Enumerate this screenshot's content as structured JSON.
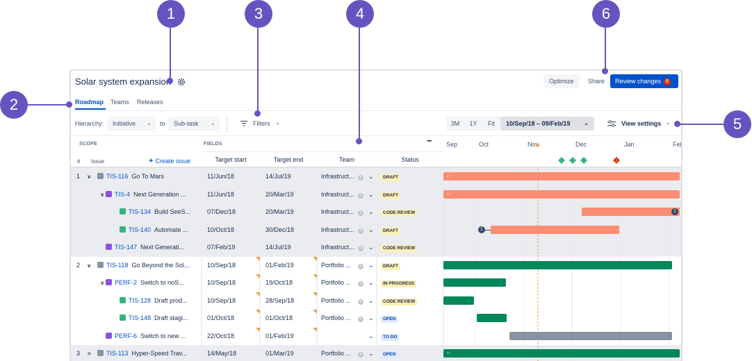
{
  "header": {
    "title": "Solar system expansion",
    "optimize": "Optimize",
    "share": "Share",
    "review": "Review changes",
    "review_count": "6"
  },
  "tabs": [
    {
      "label": "Roadmap",
      "active": true
    },
    {
      "label": "Teams",
      "active": false
    },
    {
      "label": "Releases",
      "active": false
    }
  ],
  "toolbar": {
    "hierarchy_label": "Hierarchy:",
    "hierarchy_from": "Initiative",
    "to_label": "to",
    "hierarchy_to": "Sub-task",
    "filters": "Filters",
    "zoom": [
      "3M",
      "1Y",
      "Fit"
    ],
    "range": "10/Sep/18 – 09/Feb/19",
    "view_settings": "View settings"
  },
  "columns": {
    "scope": "SCOPE",
    "fields": "FIELDS",
    "num": "#",
    "issue": "Issue",
    "create": "Create issue",
    "target_start": "Target start",
    "target_end": "Target end",
    "team": "Team",
    "status": "Status",
    "more": "•••"
  },
  "timeline": {
    "months": [
      "Sep",
      "Oct",
      "Nov",
      "Dec",
      "Jan",
      "Feb"
    ]
  },
  "rows": [
    {
      "num": "1",
      "expand": "v",
      "key": "TIS-116",
      "summary": "Go To Mars",
      "start": "11/Jun/18",
      "end": "14/Jul/19",
      "team": "Infrastruct...",
      "status": "DRAFT",
      "indent": 0,
      "type": "initiative",
      "shade": true,
      "tri_start": false,
      "tri_end": false,
      "bar": {
        "start": 0,
        "end": 1,
        "color": "#fa8d72",
        "arrow": "←"
      }
    },
    {
      "num": "",
      "expand": "v",
      "key": "TIS-4",
      "summary": "Next Generation ...",
      "start": "11/Jun/18",
      "end": "20/Mar/19",
      "team": "Infrastruct...",
      "status": "DRAFT",
      "indent": 1,
      "type": "epic",
      "shade": true,
      "tri_start": false,
      "tri_end": false,
      "bar": {
        "start": 0,
        "end": 1,
        "color": "#fa8d72",
        "arrow": "←"
      }
    },
    {
      "num": "",
      "expand": "",
      "key": "TIS-134",
      "summary": "Build SeeS...",
      "start": "07/Dec/18",
      "end": "20/Mar/19",
      "team": "Infrastruct...",
      "status": "CODE REVIEW",
      "indent": 2,
      "type": "story",
      "shade": true,
      "tri_start": false,
      "tri_end": false,
      "bar": {
        "start": 0.585,
        "end": 1,
        "color": "#fa8d72",
        "badge": "1",
        "badge_side": "right"
      }
    },
    {
      "num": "",
      "expand": "",
      "key": "TIS-140",
      "summary": "Automate ...",
      "start": "10/Oct/18",
      "end": "30/Dec/18",
      "team": "Infrastruct...",
      "status": "DRAFT",
      "indent": 2,
      "type": "story",
      "shade": true,
      "tri_start": false,
      "tri_end": false,
      "bar": {
        "start": 0.2,
        "end": 0.745,
        "color": "#fa8d72",
        "badge": "1",
        "badge_side": "left"
      }
    },
    {
      "num": "",
      "expand": "",
      "key": "TIS-147",
      "summary": "Next Generati...",
      "start": "07/Feb/19",
      "end": "14/Jul/19",
      "team": "Infrastruct...",
      "status": "CODE REVIEW",
      "indent": 1,
      "type": "epic",
      "shade": true,
      "tri_start": false,
      "tri_end": false,
      "bar": null
    },
    {
      "num": "2",
      "expand": "v",
      "key": "TIS-118",
      "summary": "Go Beyond the Sol...",
      "start": "10/Sep/18",
      "end": "01/Feb/19",
      "team": "Portfolio ...",
      "status": "DRAFT",
      "indent": 0,
      "type": "initiative",
      "shade": false,
      "tri_start": true,
      "tri_end": true,
      "bar": {
        "start": 0,
        "end": 0.967,
        "color": "#00875a"
      }
    },
    {
      "num": "",
      "expand": "v",
      "key": "PERF-2",
      "summary": "Switch to noS...",
      "start": "10/Sep/18",
      "end": "19/Oct/18",
      "team": "Portfolio ...",
      "status": "IN PROGRESS",
      "indent": 1,
      "type": "epic",
      "shade": false,
      "tri_start": true,
      "tri_end": true,
      "bar": {
        "start": 0,
        "end": 0.265,
        "color": "#00875a"
      }
    },
    {
      "num": "",
      "expand": "",
      "key": "TIS-128",
      "summary": "Draft prod...",
      "start": "10/Sep/18",
      "end": "28/Sep/18",
      "team": "Portfolio ...",
      "status": "CODE REVIEW",
      "indent": 2,
      "type": "story",
      "shade": false,
      "tri_start": true,
      "tri_end": true,
      "bar": {
        "start": 0,
        "end": 0.128,
        "color": "#00875a"
      }
    },
    {
      "num": "",
      "expand": "",
      "key": "TIS-148",
      "summary": "Draft stagi...",
      "start": "01/Oct/18",
      "end": "01/Oct/18",
      "team": "Portfolio ...",
      "status": "OPEN",
      "indent": 2,
      "type": "story2",
      "shade": false,
      "tri_start": true,
      "tri_end": true,
      "bar": {
        "start": 0.14,
        "end": 0.268,
        "color": "#00875a"
      }
    },
    {
      "num": "",
      "expand": "",
      "key": "PERF-6",
      "summary": "Switch to new ...",
      "start": "22/Oct/18",
      "end": "01/Feb/19",
      "team": "",
      "status": "TO DO",
      "indent": 1,
      "type": "epic",
      "shade": false,
      "tri_start": true,
      "tri_end": true,
      "bar": {
        "start": 0.28,
        "end": 0.967,
        "color": "#8993a4"
      }
    },
    {
      "num": "3",
      "expand": ">",
      "key": "TIS-113",
      "summary": "Hyper-Speed Trav...",
      "start": "14/May/18",
      "end": "01/Mar/19",
      "team": "Portfolio ...",
      "status": "OPEN",
      "indent": 0,
      "type": "initiative",
      "shade": true,
      "tri_start": false,
      "tri_end": false,
      "bar": {
        "start": 0,
        "end": 1,
        "color": "#00875a",
        "arrow": "←"
      }
    }
  ],
  "callouts": [
    {
      "n": "1"
    },
    {
      "n": "2"
    },
    {
      "n": "3"
    },
    {
      "n": "4"
    },
    {
      "n": "5"
    },
    {
      "n": "6"
    }
  ],
  "colors": {
    "callout": "#6554c0",
    "accent": "#0052cc"
  }
}
